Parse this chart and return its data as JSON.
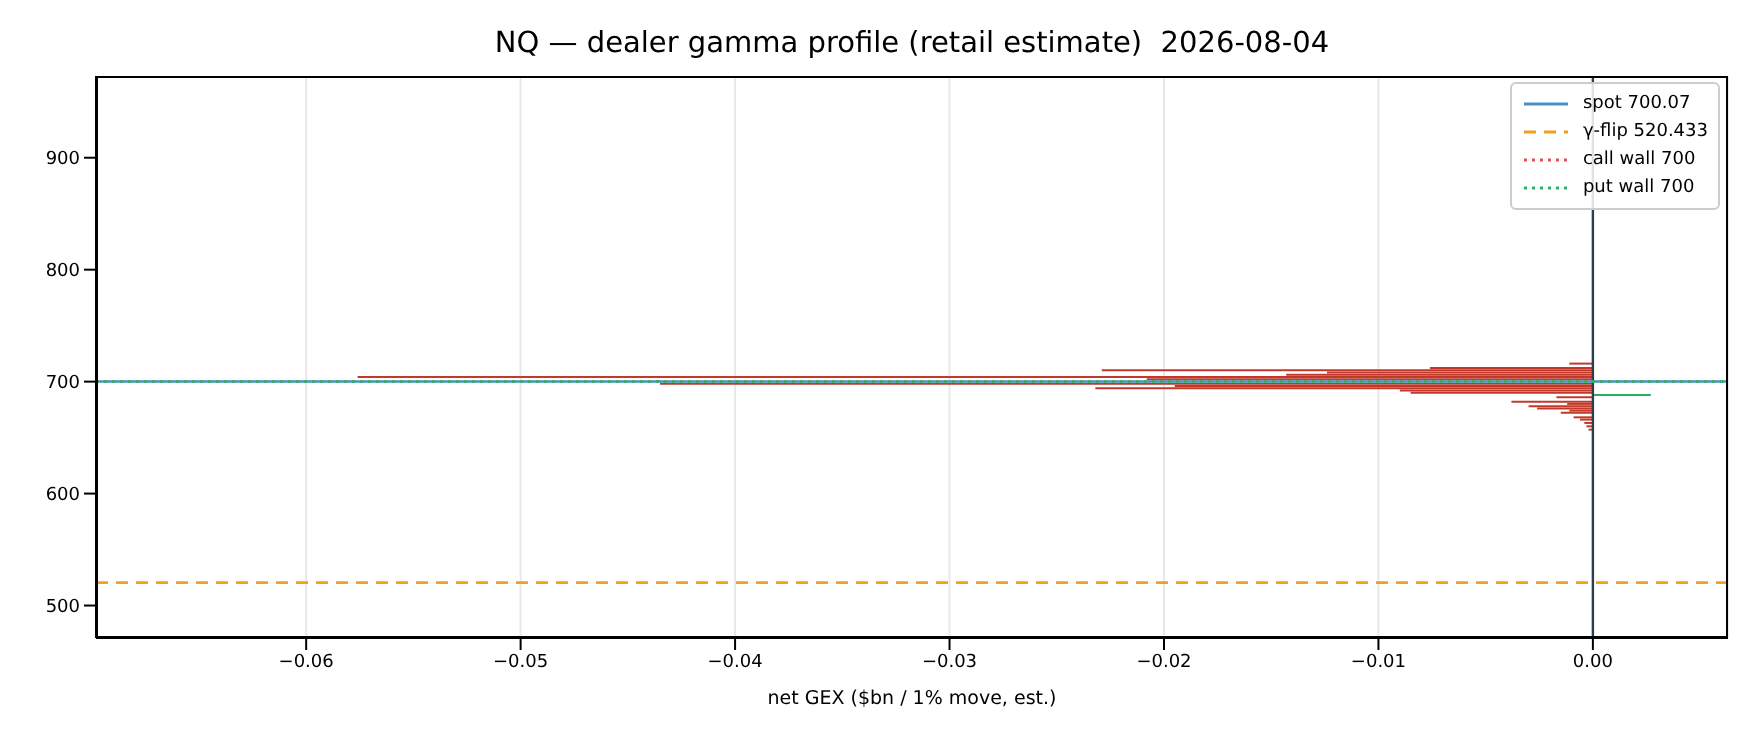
{
  "chart_data": {
    "type": "bar",
    "orientation": "horizontal",
    "title": "NQ — dealer gamma profile (retail estimate)  2026-08-04",
    "xlabel": "net GEX ($bn / 1% move, est.)",
    "x": [
      716,
      712,
      710,
      708,
      706,
      704,
      702,
      698,
      696,
      694,
      692,
      690,
      688,
      686,
      682,
      680,
      678,
      676,
      674,
      672,
      668,
      666,
      663,
      660,
      657
    ],
    "values": [
      -0.0011,
      -0.0076,
      -0.0229,
      -0.0124,
      -0.0143,
      -0.0576,
      -0.0208,
      -0.0435,
      -0.0195,
      -0.0232,
      -0.009,
      -0.0085,
      0.0027,
      -0.0017,
      -0.0038,
      -0.0012,
      -0.003,
      -0.0026,
      -0.0011,
      -0.0015,
      -0.0009,
      -0.0006,
      -0.0004,
      -0.0003,
      -0.0002
    ],
    "colors": [
      "#c0392b",
      "#c0392b",
      "#c0392b",
      "#c0392b",
      "#c0392b",
      "#c0392b",
      "#c0392b",
      "#c0392b",
      "#c0392b",
      "#c0392b",
      "#c0392b",
      "#c0392b",
      "#27ae60",
      "#c0392b",
      "#c0392b",
      "#c0392b",
      "#c0392b",
      "#c0392b",
      "#c0392b",
      "#c0392b",
      "#c0392b",
      "#c0392b",
      "#c0392b",
      "#c0392b",
      "#c0392b"
    ],
    "xlim": [
      -0.0698,
      0.0063
    ],
    "xticks": [
      {
        "value": -0.06,
        "label": "−0.06"
      },
      {
        "value": -0.05,
        "label": "−0.05"
      },
      {
        "value": -0.04,
        "label": "−0.04"
      },
      {
        "value": -0.03,
        "label": "−0.03"
      },
      {
        "value": -0.02,
        "label": "−0.02"
      },
      {
        "value": -0.01,
        "label": "−0.01"
      },
      {
        "value": 0,
        "label": "0.00"
      }
    ],
    "ylim": [
      471,
      973
    ],
    "yticks": [
      500,
      600,
      700,
      800,
      900
    ],
    "grid": "x",
    "legend": "top right",
    "ref_lines": [
      {
        "axis": "x",
        "value": 0,
        "label": null,
        "color": "#2c3e50",
        "line_style": "solid"
      },
      {
        "axis": "y",
        "value": 700.07,
        "label": "spot 700.07",
        "color": "#4a90c8",
        "line_style": "solid"
      },
      {
        "axis": "y",
        "value": 520.433,
        "label": "γ-flip 520.433",
        "color": "#f0a020",
        "line_style": "dashed"
      },
      {
        "axis": "y",
        "value": 700,
        "label": "call wall 700",
        "color": "#e05050",
        "line_style": "dotted"
      },
      {
        "axis": "y",
        "value": 700,
        "label": "put wall 700",
        "color": "#30b070",
        "line_style": "dotted"
      }
    ]
  }
}
